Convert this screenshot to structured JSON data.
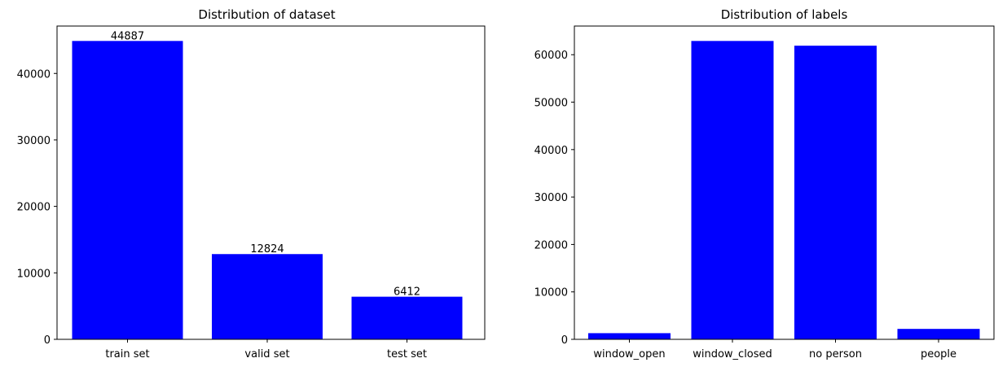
{
  "chart_data": [
    {
      "type": "bar",
      "title": "Distribution of dataset",
      "xlabel": "",
      "ylabel": "",
      "categories": [
        "train set",
        "valid set",
        "test set"
      ],
      "values": [
        44887,
        12824,
        6412
      ],
      "data_labels": [
        "44887",
        "12824",
        "6412"
      ],
      "ylim": [
        0,
        47131
      ],
      "yticks": [
        0,
        10000,
        20000,
        30000,
        40000
      ],
      "ytick_labels": [
        "0",
        "10000",
        "20000",
        "30000",
        "40000"
      ],
      "bar_color": "#0000ff",
      "grid": false,
      "legend": "none"
    },
    {
      "type": "bar",
      "title": "Distribution of labels",
      "xlabel": "",
      "ylabel": "",
      "categories": [
        "window_open",
        "window_closed",
        "no person",
        "people"
      ],
      "values": [
        1300,
        62900,
        61900,
        2200
      ],
      "ylim": [
        0,
        66045
      ],
      "yticks": [
        0,
        10000,
        20000,
        30000,
        40000,
        50000,
        60000
      ],
      "ytick_labels": [
        "0",
        "10000",
        "20000",
        "30000",
        "40000",
        "50000",
        "60000"
      ],
      "bar_color": "#0000ff",
      "grid": false,
      "legend": "none"
    }
  ]
}
